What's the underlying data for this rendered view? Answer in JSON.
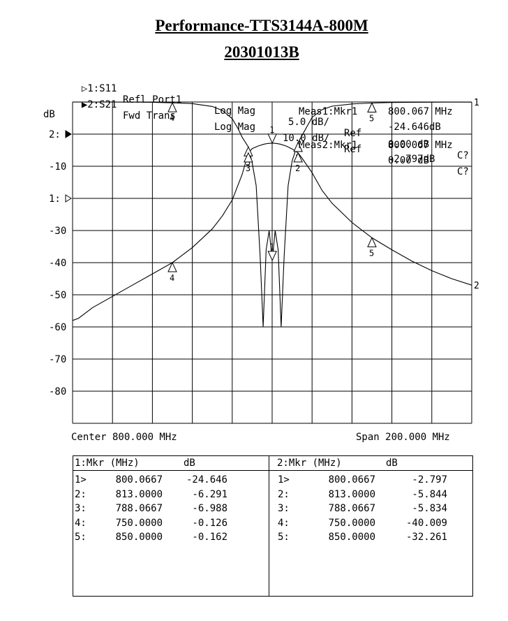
{
  "title": "Performance-TTS3144A-800M",
  "subtitle": "20301013B",
  "channels": [
    {
      "marker": "▷",
      "id": "1:S11",
      "param": "Refl Port1",
      "format": "Log Mag",
      "scale": "5.0 dB/",
      "ref_label": "Ref",
      "ref": "0.00 dB",
      "status": "C?"
    },
    {
      "marker": "▶",
      "id": "2:S21",
      "param": "Fwd Trans",
      "format": "Log Mag",
      "scale": "10.0 dB/",
      "ref_label": "Ref",
      "ref": "0.00 dB",
      "status": "C?"
    }
  ],
  "measurements": [
    {
      "label": "Meas1:Mkr1",
      "freq": "800.067 MHz",
      "value": "-24.646dB"
    },
    {
      "label": "Meas2:Mkr1",
      "freq": "800.067 MHz",
      "value": "-2.797dB"
    }
  ],
  "axis": {
    "ylabel": "dB",
    "center": "Center 800.000 MHz",
    "span": "Span 200.000 MHz"
  },
  "chart_data": {
    "type": "line",
    "x_unit": "MHz",
    "xlim": [
      700,
      900
    ],
    "grid": true,
    "y_tick_labels": [
      {
        "label": "2:",
        "ch2_db": 0
      },
      {
        "label": "-10",
        "ch2_db": -10
      },
      {
        "label": "1:",
        "ch2_db": -20
      },
      {
        "label": "-30",
        "ch2_db": -30
      },
      {
        "label": "-40",
        "ch2_db": -40
      },
      {
        "label": "-50",
        "ch2_db": -50
      },
      {
        "label": "-60",
        "ch2_db": -60
      },
      {
        "label": "-70",
        "ch2_db": -70
      },
      {
        "label": "-80",
        "ch2_db": -80
      }
    ],
    "ylim_ch2": [
      -90,
      10
    ],
    "ylim_ch1": [
      -50,
      0
    ],
    "series": [
      {
        "name": "1",
        "ylim": [
          -50,
          0
        ],
        "x": [
          700,
          710,
          720,
          730,
          740,
          750,
          760,
          770,
          775,
          780,
          783,
          785,
          788.07,
          790,
          792,
          794,
          795.5,
          797,
          798.5,
          800.07,
          801.5,
          803,
          804.5,
          806,
          808,
          810,
          813,
          815,
          820,
          825,
          830,
          840,
          850,
          860,
          870,
          880,
          890,
          900
        ],
        "y": [
          -0.01,
          -0.01,
          -0.01,
          -0.02,
          -0.05,
          -0.126,
          -0.25,
          -0.7,
          -1.3,
          -2.6,
          -4.2,
          -5.5,
          -6.988,
          -9.5,
          -13,
          -24,
          -35,
          -23,
          -20,
          -24.646,
          -20,
          -23,
          -35,
          -24,
          -13,
          -9.2,
          -6.291,
          -5.2,
          -2.4,
          -1.2,
          -0.65,
          -0.3,
          -0.162,
          -0.08,
          -0.05,
          -0.03,
          -0.02,
          -0.02
        ]
      },
      {
        "name": "2",
        "ylim": [
          -90,
          10
        ],
        "x": [
          700,
          703,
          710,
          720,
          730,
          740,
          750,
          760,
          770,
          775,
          780,
          785,
          788.07,
          790,
          793,
          796,
          798,
          800.07,
          802,
          804,
          807,
          810,
          813,
          815,
          820,
          825,
          830,
          840,
          850,
          860,
          870,
          880,
          890,
          900
        ],
        "y": [
          -58,
          -57.3,
          -54,
          -50.5,
          -47,
          -43.5,
          -40.009,
          -35.3,
          -29.5,
          -25.5,
          -20.5,
          -12.5,
          -5.834,
          -4.5,
          -3.7,
          -3.1,
          -2.9,
          -2.797,
          -2.9,
          -3.1,
          -3.7,
          -4.6,
          -5.844,
          -7.5,
          -12,
          -17.5,
          -21.5,
          -27.5,
          -32.261,
          -36,
          -39.5,
          -42.5,
          -45,
          -47
        ]
      }
    ],
    "markers": {
      "1": [
        {
          "id": "1",
          "freq": 800.0667,
          "db": -24.646
        },
        {
          "id": "2",
          "freq": 813.0,
          "db": -6.291
        },
        {
          "id": "3",
          "freq": 788.0667,
          "db": -6.988
        },
        {
          "id": "4",
          "freq": 750.0,
          "db": -0.126
        },
        {
          "id": "5",
          "freq": 850.0,
          "db": -0.162
        }
      ],
      "2": [
        {
          "id": "1",
          "freq": 800.0667,
          "db": -2.797
        },
        {
          "id": "2",
          "freq": 813.0,
          "db": -5.844
        },
        {
          "id": "3",
          "freq": 788.0667,
          "db": -5.834
        },
        {
          "id": "4",
          "freq": 750.0,
          "db": -40.009
        },
        {
          "id": "5",
          "freq": 850.0,
          "db": -32.261
        }
      ]
    }
  },
  "tables": [
    {
      "header": {
        "mkr": "1:Mkr (MHz)",
        "unit": "dB"
      },
      "rows": [
        {
          "id": "1>",
          "freq": "800.0667",
          "value": "-24.646"
        },
        {
          "id": "2:",
          "freq": "813.0000",
          "value": "-6.291"
        },
        {
          "id": "3:",
          "freq": "788.0667",
          "value": "-6.988"
        },
        {
          "id": "4:",
          "freq": "750.0000",
          "value": "-0.126"
        },
        {
          "id": "5:",
          "freq": "850.0000",
          "value": "-0.162"
        }
      ]
    },
    {
      "header": {
        "mkr": "2:Mkr (MHz)",
        "unit": "dB"
      },
      "rows": [
        {
          "id": "1>",
          "freq": "800.0667",
          "value": "-2.797"
        },
        {
          "id": "2:",
          "freq": "813.0000",
          "value": "-5.844"
        },
        {
          "id": "3:",
          "freq": "788.0667",
          "value": "-5.834"
        },
        {
          "id": "4:",
          "freq": "750.0000",
          "value": "-40.009"
        },
        {
          "id": "5:",
          "freq": "850.0000",
          "value": "-32.261"
        }
      ]
    }
  ]
}
